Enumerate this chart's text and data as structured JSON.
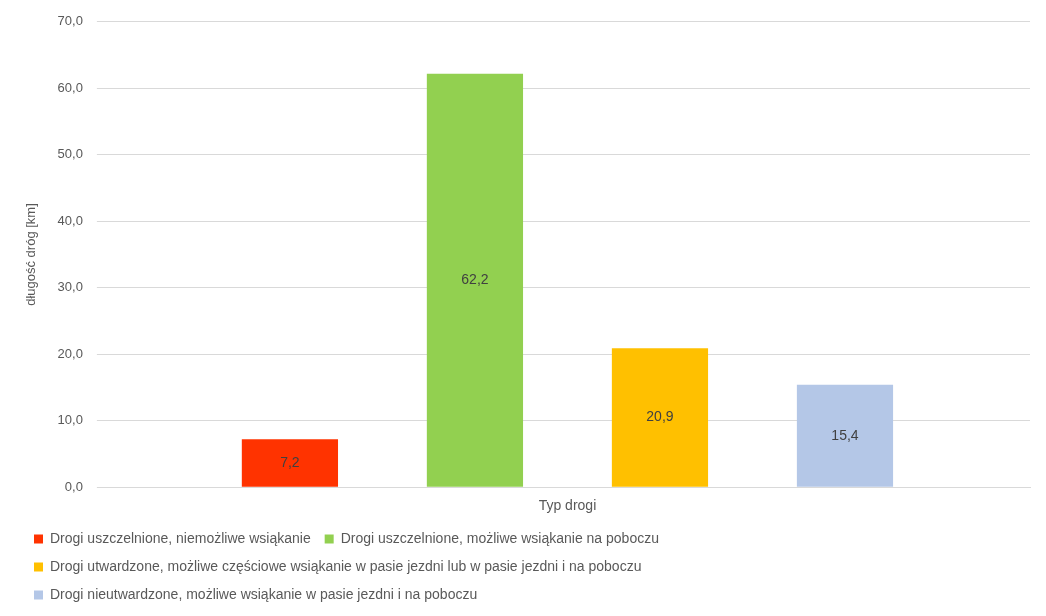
{
  "chart_data": {
    "type": "bar",
    "ylabel": "długość dróg [km]",
    "categories": [
      "Typ drogi"
    ],
    "series": [
      {
        "name": "Drogi uszczelnione, niemożliwe wsiąkanie",
        "color": "#ff3300",
        "values": [
          7.2
        ],
        "value_labels": [
          "7,2"
        ]
      },
      {
        "name": "Drogi uszczelnione, możliwe wsiąkanie na poboczu",
        "color": "#92d050",
        "values": [
          62.2
        ],
        "value_labels": [
          "62,2"
        ]
      },
      {
        "name": "Drogi utwardzone, możliwe częściowe wsiąkanie w pasie jezdni lub w pasie jezdni i na poboczu",
        "color": "#ffc000",
        "values": [
          20.9
        ],
        "value_labels": [
          "20,9"
        ]
      },
      {
        "name": "Drogi nieutwardzone, możliwe wsiąkanie w pasie jezdni i na poboczu",
        "color": "#b4c7e7",
        "values": [
          15.4
        ],
        "value_labels": [
          "15,4"
        ]
      }
    ],
    "ylim": [
      0,
      70
    ],
    "yticks": [
      {
        "value": 0,
        "label": "0,0"
      },
      {
        "value": 10,
        "label": "10,0"
      },
      {
        "value": 20,
        "label": "20,0"
      },
      {
        "value": 30,
        "label": "30,0"
      },
      {
        "value": 40,
        "label": "40,0"
      },
      {
        "value": 50,
        "label": "50,0"
      },
      {
        "value": 60,
        "label": "60,0"
      },
      {
        "value": 70,
        "label": "70,0"
      }
    ],
    "grid": "y",
    "legend": "bottom left"
  }
}
